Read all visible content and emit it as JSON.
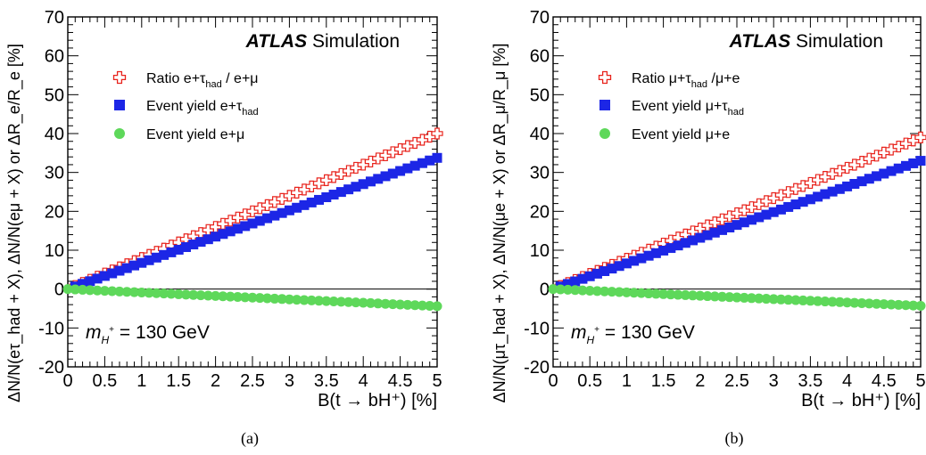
{
  "colors": {
    "ratio": "#e8231c",
    "event_yield_tau": "#1c26e6",
    "event_yield_lep": "#5ed85a",
    "axis": "#000000"
  },
  "chart_data": [
    {
      "panel_label": "(a)",
      "type": "scatter",
      "experiment": "ATLAS",
      "experiment_suffix": "Simulation",
      "mass_label": "= 130 GeV",
      "mass_symbol": "m",
      "mass_sub": "H",
      "mass_sup": "+",
      "xlabel": "B(t → bH⁺) [%]",
      "ylabel": "ΔN/N(eτ_had + X), ΔN/N(eμ + X) or ΔR_e/R_e [%]",
      "xlim": [
        0,
        5
      ],
      "ylim": [
        -20,
        70
      ],
      "xticks": [
        "0",
        "0.5",
        "1",
        "1.5",
        "2",
        "2.5",
        "3",
        "3.5",
        "4",
        "4.5",
        "5"
      ],
      "yticks": [
        "-20",
        "-10",
        "0",
        "10",
        "20",
        "30",
        "40",
        "50",
        "60",
        "70"
      ],
      "legend_position": "top-left",
      "series": [
        {
          "name": "Ratio e+τ_had / e+μ",
          "legend_main": "Ratio e+τ",
          "legend_sub": "had",
          "legend_tail": " / e+μ",
          "marker": "open-cross",
          "slope": 8.0,
          "x_start": 0.1,
          "x_end": 5.0,
          "x_step": 0.1
        },
        {
          "name": "Event yield e+τ_had",
          "legend_main": "Event yield e+τ",
          "legend_sub": "had",
          "legend_tail": "",
          "marker": "square",
          "slope": 6.75,
          "x_start": 0.1,
          "x_end": 5.0,
          "x_step": 0.1
        },
        {
          "name": "Event yield e+μ",
          "legend_main": "Event yield e+μ",
          "legend_sub": "",
          "legend_tail": "",
          "marker": "circle",
          "slope": -0.88,
          "x_start": 0.0,
          "x_end": 5.0,
          "x_step": 0.1
        }
      ]
    },
    {
      "panel_label": "(b)",
      "type": "scatter",
      "experiment": "ATLAS",
      "experiment_suffix": "Simulation",
      "mass_label": "= 130 GeV",
      "mass_symbol": "m",
      "mass_sub": "H",
      "mass_sup": "+",
      "xlabel": "B(t → bH⁺) [%]",
      "ylabel": "ΔN/N(μτ_had + X), ΔN/N(μe + X) or ΔR_μ/R_μ [%]",
      "xlim": [
        0,
        5
      ],
      "ylim": [
        -20,
        70
      ],
      "xticks": [
        "0",
        "0.5",
        "1",
        "1.5",
        "2",
        "2.5",
        "3",
        "3.5",
        "4",
        "4.5",
        "5"
      ],
      "yticks": [
        "-20",
        "-10",
        "0",
        "10",
        "20",
        "30",
        "40",
        "50",
        "60",
        "70"
      ],
      "legend_position": "top-left",
      "series": [
        {
          "name": "Ratio μ+τ_had /μ+e",
          "legend_main": "Ratio μ+τ",
          "legend_sub": "had",
          "legend_tail": " /μ+e",
          "marker": "open-cross",
          "slope": 7.8,
          "x_start": 0.1,
          "x_end": 5.0,
          "x_step": 0.1
        },
        {
          "name": "Event yield μ+τ_had",
          "legend_main": "Event yield μ+τ",
          "legend_sub": "had",
          "legend_tail": "",
          "marker": "square",
          "slope": 6.6,
          "x_start": 0.1,
          "x_end": 5.0,
          "x_step": 0.1
        },
        {
          "name": "Event yield μ+e",
          "legend_main": "Event yield μ+e",
          "legend_sub": "",
          "legend_tail": "",
          "marker": "circle",
          "slope": -0.86,
          "x_start": 0.0,
          "x_end": 5.0,
          "x_step": 0.1
        }
      ]
    }
  ]
}
